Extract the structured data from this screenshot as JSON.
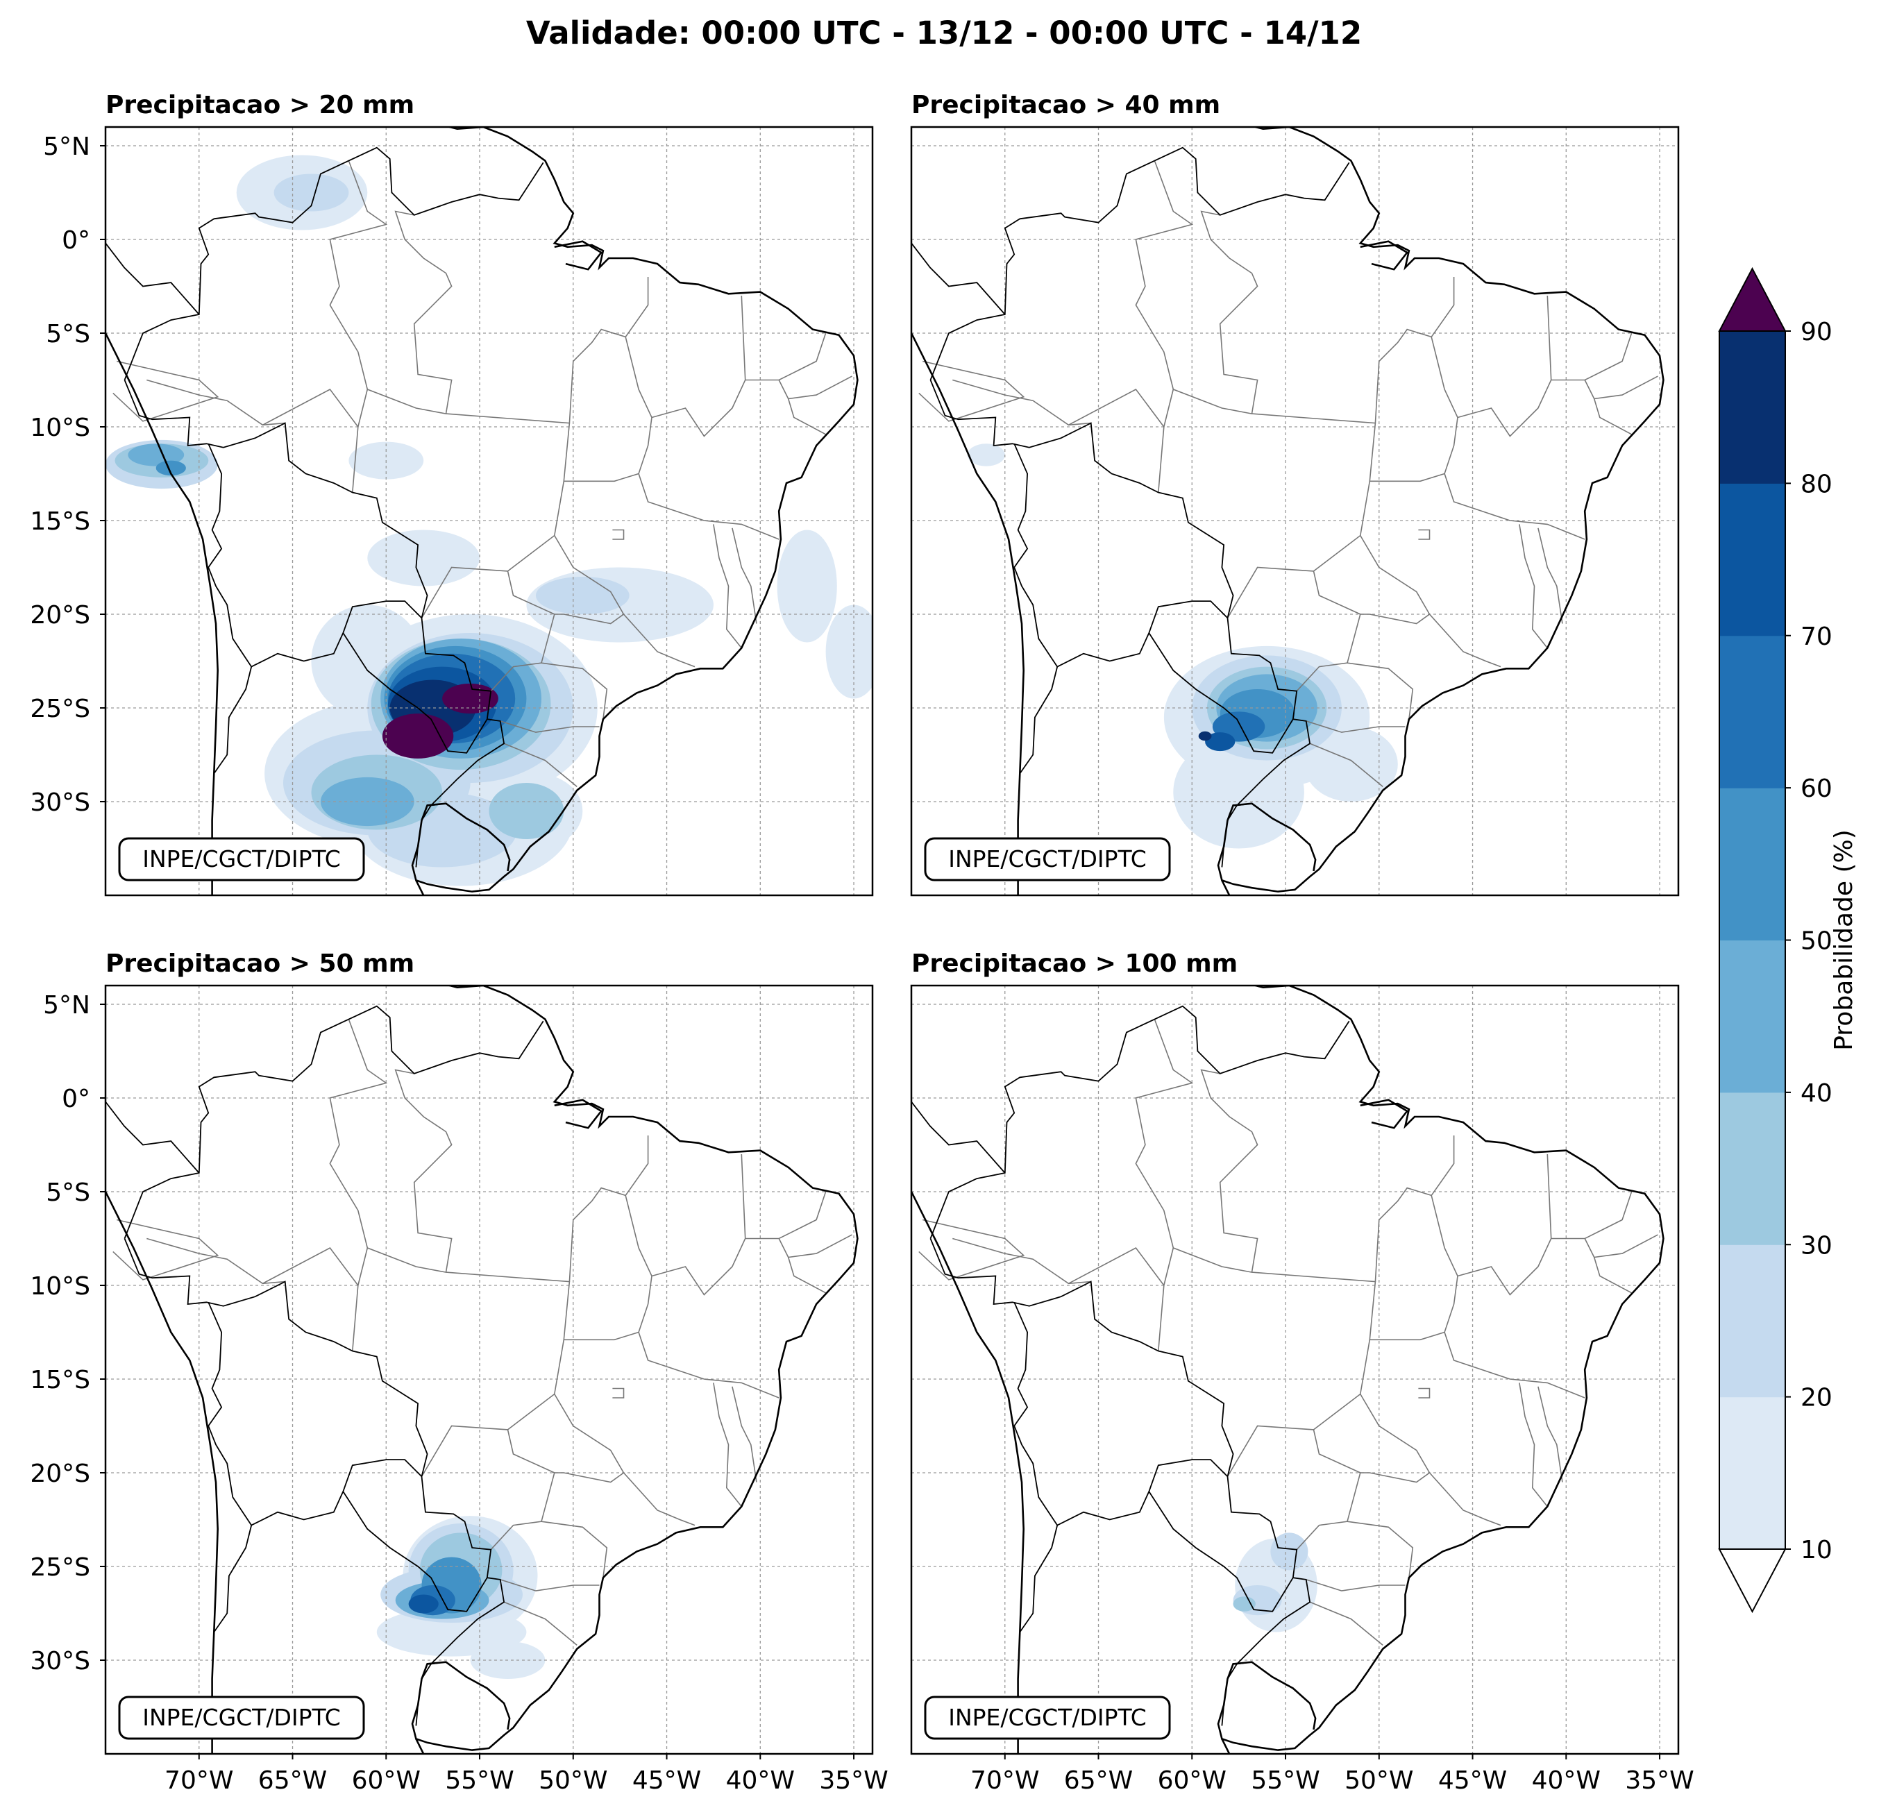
{
  "figure": {
    "title": "Validade: 00:00 UTC - 13/12 - 00:00 UTC - 14/12"
  },
  "panels": [
    {
      "title": "Precipitacao > 20 mm",
      "credit": "INPE/CGCT/DIPTC"
    },
    {
      "title": "Precipitacao > 40 mm",
      "credit": "INPE/CGCT/DIPTC"
    },
    {
      "title": "Precipitacao > 50 mm",
      "credit": "INPE/CGCT/DIPTC"
    },
    {
      "title": "Precipitacao > 100 mm",
      "credit": "INPE/CGCT/DIPTC"
    }
  ],
  "map": {
    "lon_range": [
      -75,
      -34
    ],
    "lat_range": [
      -35,
      6
    ],
    "lon_ticks": [
      -70,
      -65,
      -60,
      -55,
      -50,
      -45,
      -40,
      -35
    ],
    "lon_tick_labels": [
      "70°W",
      "65°W",
      "60°W",
      "55°W",
      "50°W",
      "45°W",
      "40°W",
      "35°W"
    ],
    "lat_ticks": [
      5,
      0,
      -5,
      -10,
      -15,
      -20,
      -25,
      -30
    ],
    "lat_tick_labels": [
      "5°N",
      "0°",
      "5°S",
      "10°S",
      "15°S",
      "20°S",
      "25°S",
      "30°S"
    ],
    "gridlines": true
  },
  "colorbar": {
    "label": "Probabilidade (%)",
    "ticks": [
      10,
      20,
      30,
      40,
      50,
      60,
      70,
      80,
      90
    ],
    "tick_labels": [
      "10",
      "20",
      "30",
      "40",
      "50",
      "60",
      "70",
      "80",
      "90"
    ],
    "colors": [
      "#dde9f5",
      "#c5daef",
      "#9dc9e0",
      "#6baed6",
      "#4292c6",
      "#2171b5",
      "#0c56a0",
      "#083070"
    ],
    "over_color": "#4c0250",
    "under_color": "#ffffff",
    "extend": "both"
  },
  "colors": {
    "coast": "#000000",
    "state_border": "#777777",
    "grid": "#999999"
  }
}
